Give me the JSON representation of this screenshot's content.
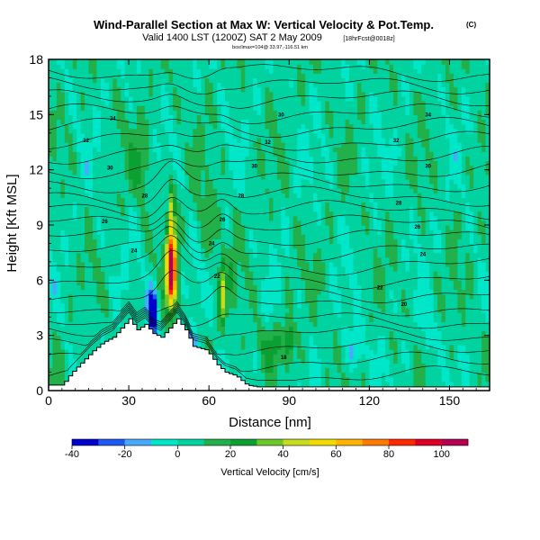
{
  "chart_data": {
    "type": "heatmap",
    "title": "Wind-Parallel Section at Max W: Vertical Velocity & Pot.Temp.",
    "title_mark": "(C)",
    "subtitle": "Valid 1400 LST (1200Z) SAT 2 May 2009",
    "subtitle_tag": "[18hrFcst@0018z]",
    "subtitle2": "box/imax=104@ 33.97,-116.51 km",
    "xlabel": "Distance [nm]",
    "ylabel": "Height [Kft MSL]",
    "xlim": [
      0,
      165
    ],
    "ylim": [
      0,
      18
    ],
    "xticks": [
      0,
      30,
      60,
      90,
      120,
      150
    ],
    "yticks": [
      0,
      3,
      6,
      9,
      12,
      15,
      18
    ],
    "colorbar": {
      "label": "Vertical Velocity [cm/s]",
      "min": -40,
      "max": 110,
      "ticks": [
        -40,
        -20,
        0,
        20,
        40,
        60,
        80,
        100
      ],
      "colors": [
        "#0000cc",
        "#1e5af0",
        "#46aaff",
        "#00e6c8",
        "#00d2a0",
        "#22b04a",
        "#0aa032",
        "#6cc828",
        "#c8dc1e",
        "#f0dc00",
        "#ffb400",
        "#ff7800",
        "#ff2800",
        "#dc0028",
        "#b40050"
      ]
    },
    "theta_contour_labels": [
      {
        "value": "34",
        "x": 24,
        "y": 14.8
      },
      {
        "value": "32",
        "x": 14,
        "y": 13.6
      },
      {
        "value": "30",
        "x": 23,
        "y": 12.1
      },
      {
        "value": "28",
        "x": 36,
        "y": 10.6
      },
      {
        "value": "26",
        "x": 21,
        "y": 9.2
      },
      {
        "value": "24",
        "x": 32,
        "y": 7.6
      },
      {
        "value": "30",
        "x": 87,
        "y": 15.0
      },
      {
        "value": "32",
        "x": 82,
        "y": 13.5
      },
      {
        "value": "30",
        "x": 77,
        "y": 12.2
      },
      {
        "value": "28",
        "x": 72,
        "y": 10.6
      },
      {
        "value": "26",
        "x": 65,
        "y": 9.3
      },
      {
        "value": "24",
        "x": 61,
        "y": 8.0
      },
      {
        "value": "22",
        "x": 63,
        "y": 6.2
      },
      {
        "value": "34",
        "x": 142,
        "y": 15.0
      },
      {
        "value": "32",
        "x": 130,
        "y": 13.6
      },
      {
        "value": "30",
        "x": 142,
        "y": 12.2
      },
      {
        "value": "28",
        "x": 131,
        "y": 10.2
      },
      {
        "value": "26",
        "x": 138,
        "y": 8.9
      },
      {
        "value": "24",
        "x": 140,
        "y": 7.4
      },
      {
        "value": "22",
        "x": 124,
        "y": 5.6
      },
      {
        "value": "20",
        "x": 133,
        "y": 4.7
      },
      {
        "value": "18",
        "x": 88,
        "y": 1.8
      }
    ]
  }
}
